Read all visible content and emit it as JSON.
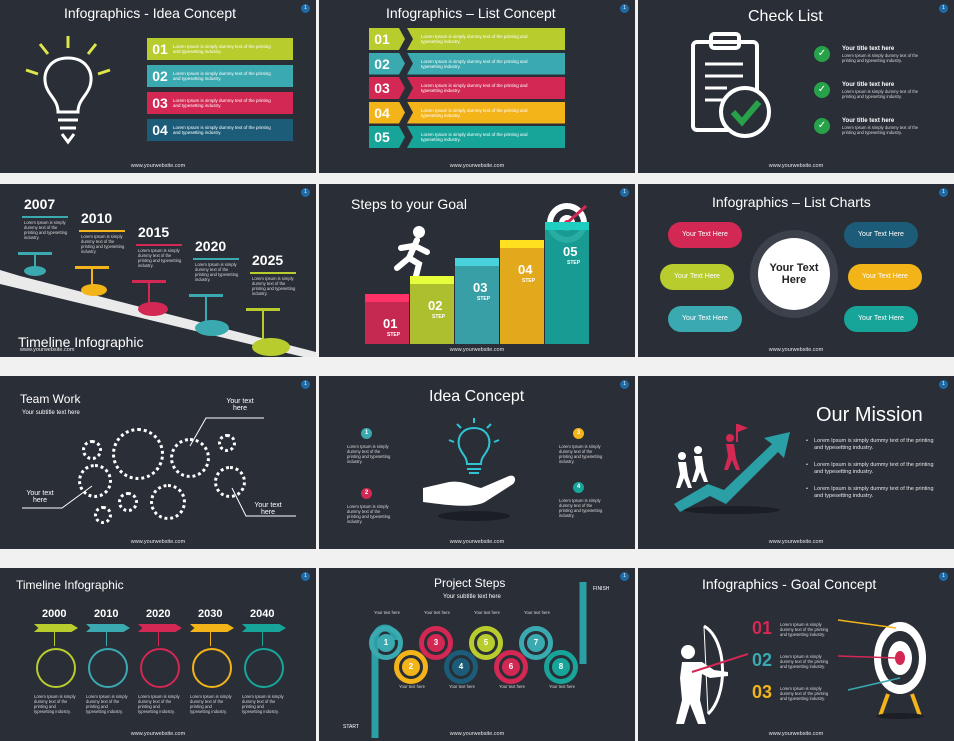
{
  "footer_url": "www.yourwebsite.com",
  "slides": [
    {
      "num": "1",
      "title": "Infographics - Idea Concept",
      "items": [
        {
          "n": "01",
          "color": "#b8cc2e"
        },
        {
          "n": "02",
          "color": "#3aa9b0"
        },
        {
          "n": "03",
          "color": "#d22853"
        },
        {
          "n": "04",
          "color": "#1c5c78"
        }
      ],
      "body": "Lorem Ipsum is simply dummy text of the printing and typesetting industry."
    },
    {
      "num": "1",
      "title": "Infographics – List Concept",
      "items": [
        {
          "n": "01",
          "color": "#b8cc2e"
        },
        {
          "n": "02",
          "color": "#3aa9b0"
        },
        {
          "n": "03",
          "color": "#d22853"
        },
        {
          "n": "04",
          "color": "#f3b41a"
        },
        {
          "n": "05",
          "color": "#17a59a"
        }
      ],
      "body": "Lorem Ipsum is simply dummy text of the printing and typesetting industry."
    },
    {
      "num": "1",
      "title": "Check List",
      "items": [
        {
          "head": "Your title text here",
          "body": "Lorem Ipsum is simply dummy text of the printing and typesetting industry."
        },
        {
          "head": "Your title text here",
          "body": "Lorem Ipsum is simply dummy text of the printing and typesetting industry."
        },
        {
          "head": "Your title text here",
          "body": "Lorem Ipsum is simply dummy text of the printing and typesetting industry."
        }
      ]
    },
    {
      "num": "1",
      "title": "Timeline Infographic",
      "years": [
        {
          "y": "2007",
          "color": "#3aa9b0"
        },
        {
          "y": "2010",
          "color": "#f3b41a"
        },
        {
          "y": "2015",
          "color": "#d22853"
        },
        {
          "y": "2020",
          "color": "#3aa9b0"
        },
        {
          "y": "2025",
          "color": "#b8cc2e"
        }
      ],
      "body": "Lorem Ipsum is simply dummy text of the printing and typesetting industry."
    },
    {
      "num": "1",
      "title": "Steps to your Goal",
      "steps": [
        {
          "n": "01",
          "label": "STEP",
          "color": "#d22853"
        },
        {
          "n": "02",
          "label": "STEP",
          "color": "#b8cc2e"
        },
        {
          "n": "03",
          "label": "STEP",
          "color": "#3aa9b0"
        },
        {
          "n": "04",
          "label": "STEP",
          "color": "#f3b41a"
        },
        {
          "n": "05",
          "label": "STEP",
          "color": "#17a59a"
        }
      ]
    },
    {
      "num": "1",
      "title": "Infographics – List Charts",
      "center": "Your Text Here",
      "bubbles": [
        {
          "t": "Your Text Here",
          "color": "#d22853"
        },
        {
          "t": "Your Text Here",
          "color": "#b8cc2e"
        },
        {
          "t": "Your Text Here",
          "color": "#3aa9b0"
        },
        {
          "t": "Your Text Here",
          "color": "#1c5c78"
        },
        {
          "t": "Your Text Here",
          "color": "#f3b41a"
        },
        {
          "t": "Your Text Here",
          "color": "#17a59a"
        }
      ]
    },
    {
      "num": "1",
      "title": "Team Work",
      "subtitle": "Your subtitle text here",
      "labels": [
        "Your text here",
        "Your text here",
        "Your text here"
      ]
    },
    {
      "num": "1",
      "title": "Idea Concept",
      "items": [
        {
          "n": "1",
          "color": "#3aa9b0"
        },
        {
          "n": "2",
          "color": "#d22853"
        },
        {
          "n": "3",
          "color": "#f3b41a"
        },
        {
          "n": "4",
          "color": "#17a59a"
        }
      ],
      "body": "Lorem Ipsum is simply dummy text of the printing and typesetting industry."
    },
    {
      "num": "1",
      "title": "Our Mission",
      "bullets": [
        "Lorem Ipsum is simply dummy text of the printing and typesetting industry.",
        "Lorem Ipsum is simply dummy text of the printing and typesetting industry.",
        "Lorem Ipsum is simply dummy text of the printing and typesetting industry."
      ]
    },
    {
      "num": "1",
      "title": "Timeline Infographic",
      "years": [
        {
          "y": "2000",
          "color": "#b8cc2e"
        },
        {
          "y": "2010",
          "color": "#3aa9b0"
        },
        {
          "y": "2020",
          "color": "#d22853"
        },
        {
          "y": "2030",
          "color": "#f3b41a"
        },
        {
          "y": "2040",
          "color": "#17a59a"
        }
      ],
      "body": "Lorem Ipsum is simply dummy text of the printing and typesetting industry."
    },
    {
      "num": "1",
      "title": "Project Steps",
      "subtitle": "Your subtitle text here",
      "start": "START",
      "finish": "FINISH",
      "steps": [
        {
          "n": "1",
          "color": "#3aa9b0"
        },
        {
          "n": "2",
          "color": "#f3b41a"
        },
        {
          "n": "3",
          "color": "#d22853"
        },
        {
          "n": "4",
          "color": "#1c5c78"
        },
        {
          "n": "5",
          "color": "#b8cc2e"
        },
        {
          "n": "6",
          "color": "#d22853"
        },
        {
          "n": "7",
          "color": "#3aa9b0"
        },
        {
          "n": "8",
          "color": "#17a59a"
        }
      ],
      "label": "Your text here"
    },
    {
      "num": "1",
      "title": "Infographics - Goal Concept",
      "items": [
        {
          "n": "01",
          "color": "#d22853"
        },
        {
          "n": "02",
          "color": "#3aa9b0"
        },
        {
          "n": "03",
          "color": "#f3b41a"
        }
      ],
      "body": "Lorem Ipsum is simply dummy text of the printing and typesetting industry."
    }
  ]
}
